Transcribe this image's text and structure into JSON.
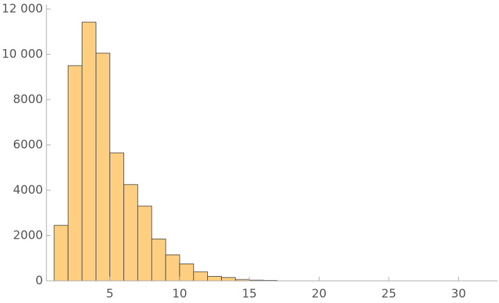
{
  "chart_data": {
    "type": "histogram",
    "bins": [
      1,
      2,
      3,
      4,
      5,
      6,
      7,
      8,
      9,
      10,
      11,
      12,
      13,
      14,
      15,
      16,
      17
    ],
    "values": [
      2450,
      9500,
      11420,
      10050,
      5650,
      4250,
      3300,
      1850,
      1150,
      750,
      400,
      200,
      150,
      60,
      30,
      20
    ],
    "color": "#fecf80",
    "xlim": [
      0.45,
      32.8
    ],
    "ylim": [
      0,
      12200
    ],
    "xticks": [
      5,
      10,
      15,
      20,
      25,
      30
    ],
    "yticks": [
      0,
      2000,
      4000,
      6000,
      8000,
      {
        "value": 10000,
        "label": "10 000"
      },
      {
        "value": 12000,
        "label": "12 000"
      }
    ]
  }
}
